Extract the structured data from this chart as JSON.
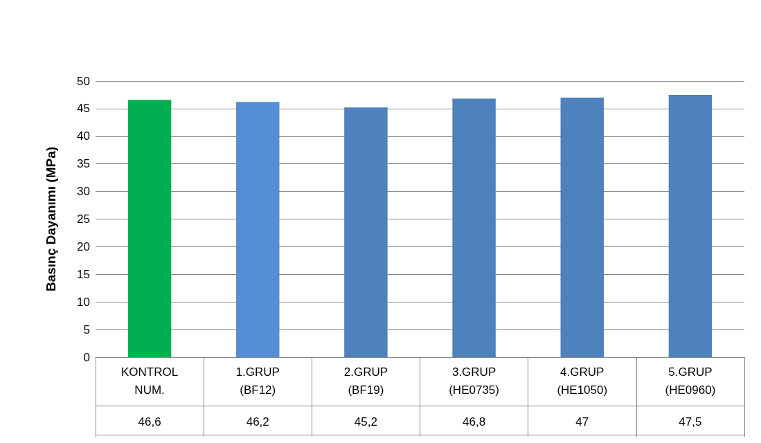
{
  "chart_data": {
    "type": "bar",
    "categories": [
      "KONTROL\nNUM.",
      "1.GRUP\n(BF12)",
      "2.GRUP\n(BF19)",
      "3.GRUP\n(HE0735)",
      "4.GRUP\n(HE1050)",
      "5.GRUP\n(HE0960)"
    ],
    "values": [
      46.6,
      46.2,
      45.2,
      46.8,
      47,
      47.5
    ],
    "colors": [
      "#00b050",
      "#558ed5",
      "#4f81bd",
      "#4f81bd",
      "#4f81bd",
      "#4f81bd"
    ],
    "value_labels": [
      "46,6",
      "46,2",
      "45,2",
      "46,8",
      "47",
      "47,5"
    ],
    "ylabel": "Basınç Dayanımı (MPa)",
    "ylim": [
      0,
      50
    ],
    "yticks": [
      0,
      5,
      10,
      15,
      20,
      25,
      30,
      35,
      40,
      45,
      50
    ],
    "grid": "y"
  }
}
